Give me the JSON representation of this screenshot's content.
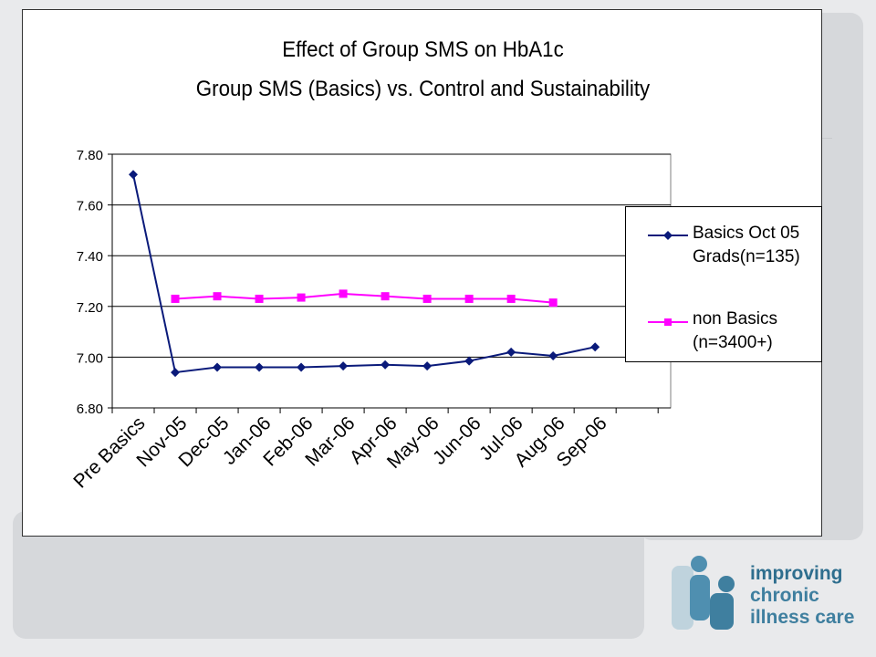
{
  "chart_data": {
    "type": "line",
    "title": "Effect of Group SMS on HbA1c",
    "subtitle": "Group SMS (Basics) vs. Control and Sustainability",
    "categories": [
      "Pre Basics",
      "Nov-05",
      "Dec-05",
      "Jan-06",
      "Feb-06",
      "Mar-06",
      "Apr-06",
      "May-06",
      "Jun-06",
      "Jul-06",
      "Aug-06",
      "Sep-06"
    ],
    "series": [
      {
        "name": "Basics Oct 05 Grads(n=135)",
        "color": "#0a1a7a",
        "marker": "diamond",
        "values": [
          7.72,
          6.94,
          6.96,
          6.96,
          6.96,
          6.965,
          6.97,
          6.965,
          6.985,
          7.02,
          7.005,
          7.04
        ]
      },
      {
        "name": "non Basics (n=3400+)",
        "color": "#ff00ff",
        "marker": "square",
        "values": [
          null,
          7.23,
          7.24,
          7.23,
          7.235,
          7.25,
          7.24,
          7.23,
          7.23,
          7.23,
          7.215,
          null
        ]
      }
    ],
    "ylim": [
      6.8,
      7.8
    ],
    "yticks": [
      "7.80",
      "7.60",
      "7.40",
      "7.20",
      "7.00",
      "6.80"
    ],
    "grid": true,
    "legend": "right"
  },
  "legend": {
    "basics_label": "Basics Oct 05\nGrads(n=135)",
    "nonbasics_label": "non Basics\n(n=3400+)"
  },
  "logo": {
    "line1": "improving",
    "line2": "chronic",
    "line3": "illness care",
    "icon": "people-puzzle-icon"
  }
}
